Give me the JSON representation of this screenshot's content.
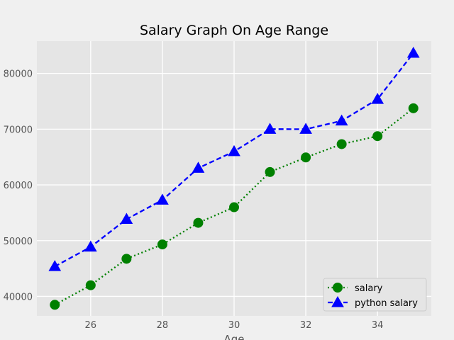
{
  "chart_data": {
    "type": "line",
    "title": "Salary Graph On Age Range",
    "xlabel": "Age",
    "ylabel": "",
    "xlim": [
      24.5,
      35.5
    ],
    "ylim": [
      36500,
      85800
    ],
    "x_ticks": [
      26,
      28,
      30,
      32,
      34
    ],
    "y_ticks": [
      40000,
      50000,
      60000,
      70000,
      80000
    ],
    "grid": true,
    "legend_position": "lower-right",
    "x": [
      25,
      26,
      27,
      28,
      29,
      30,
      31,
      32,
      33,
      34,
      35
    ],
    "series": [
      {
        "name": "salary",
        "values": [
          38496,
          42000,
          46752,
          49320,
          53200,
          56000,
          62316,
          64928,
          67317,
          68748,
          73752
        ],
        "color": "#008000",
        "line_style": "dotted",
        "marker": "circle"
      },
      {
        "name": "python salary",
        "values": [
          45372,
          48876,
          53850,
          57287,
          63016,
          65998,
          70003,
          70000,
          71496,
          75370,
          83640
        ],
        "color": "#0000ff",
        "line_style": "dashed",
        "marker": "triangle"
      }
    ]
  }
}
